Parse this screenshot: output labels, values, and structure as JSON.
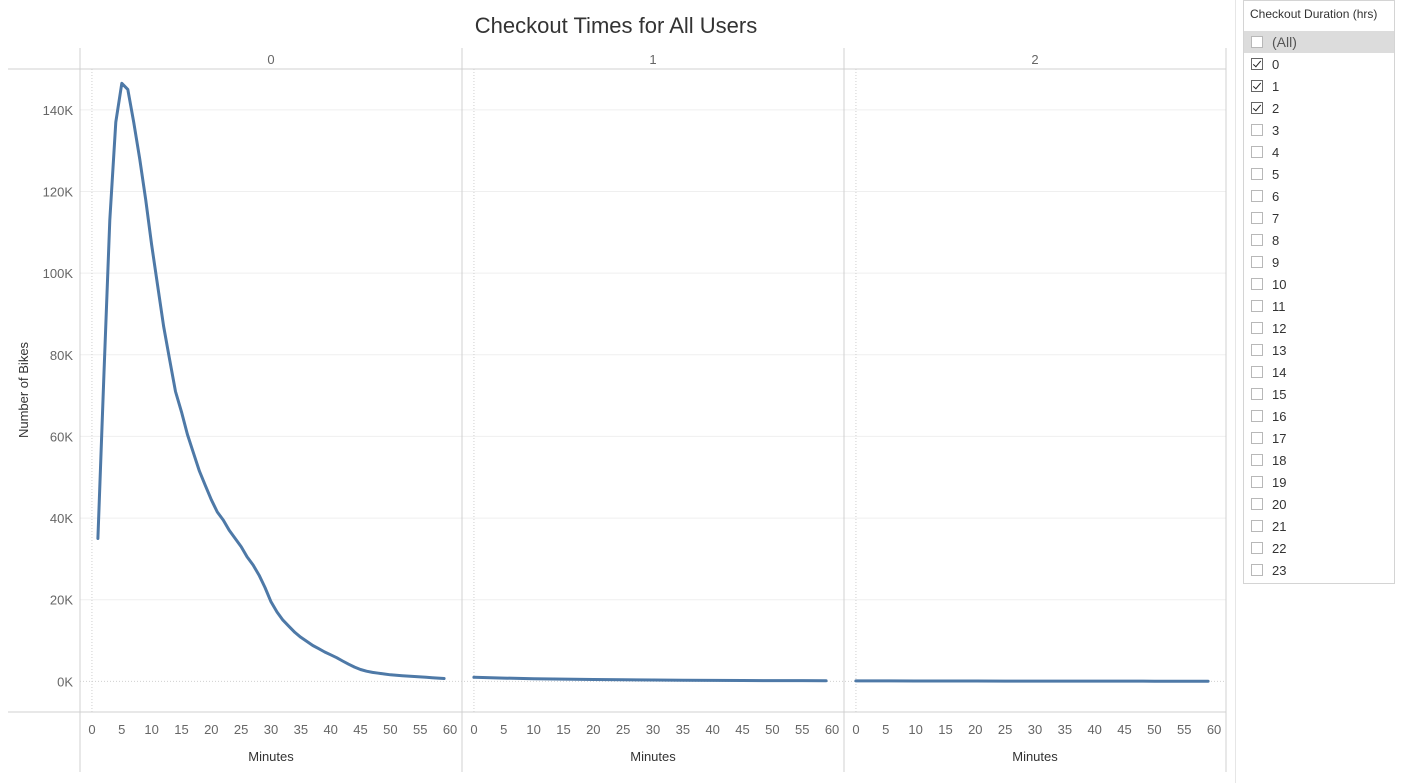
{
  "chart_data": {
    "type": "line",
    "title": "Checkout Times for All Users",
    "ylabel": "Number of Bikes",
    "xlabel": "Minutes",
    "ylim": [
      -7500,
      150000
    ],
    "yticks": [
      0,
      20000,
      40000,
      60000,
      80000,
      100000,
      120000,
      140000
    ],
    "ytick_labels": [
      "0K",
      "20K",
      "40K",
      "60K",
      "80K",
      "100K",
      "120K",
      "140K"
    ],
    "xlim": [
      -2,
      62
    ],
    "xticks": [
      0,
      5,
      10,
      15,
      20,
      25,
      30,
      35,
      40,
      45,
      50,
      55,
      60
    ],
    "xtick_labels": [
      "0",
      "5",
      "10",
      "15",
      "20",
      "25",
      "30",
      "35",
      "40",
      "45",
      "50",
      "55",
      "60"
    ],
    "grid": true,
    "color": "#4e79a7",
    "panels": [
      {
        "header": "0",
        "x": [
          1,
          2,
          3,
          4,
          5,
          6,
          7,
          8,
          9,
          10,
          11,
          12,
          13,
          14,
          15,
          16,
          17,
          18,
          19,
          20,
          21,
          22,
          23,
          24,
          25,
          26,
          27,
          28,
          29,
          30,
          31,
          32,
          33,
          34,
          35,
          36,
          37,
          38,
          39,
          40,
          41,
          42,
          43,
          44,
          45,
          46,
          47,
          48,
          49,
          50,
          51,
          52,
          53,
          54,
          55,
          56,
          57,
          58,
          59
        ],
        "y": [
          35000,
          75000,
          113000,
          137000,
          146500,
          145000,
          137000,
          128000,
          118000,
          107000,
          97000,
          87000,
          79000,
          71000,
          66000,
          60500,
          56000,
          51500,
          48000,
          44500,
          41500,
          39500,
          37000,
          35000,
          33000,
          30500,
          28500,
          26000,
          23000,
          19500,
          17000,
          15000,
          13500,
          12000,
          10800,
          9800,
          8800,
          8000,
          7200,
          6500,
          5800,
          5000,
          4200,
          3500,
          2900,
          2500,
          2200,
          2000,
          1800,
          1600,
          1500,
          1400,
          1300,
          1200,
          1100,
          1000,
          900,
          800,
          700
        ]
      },
      {
        "header": "1",
        "x": [
          0,
          5,
          10,
          15,
          20,
          25,
          30,
          35,
          40,
          45,
          50,
          55,
          59
        ],
        "y": [
          1000,
          800,
          650,
          550,
          450,
          400,
          350,
          300,
          250,
          220,
          200,
          180,
          160
        ]
      },
      {
        "header": "2",
        "x": [
          0,
          5,
          10,
          15,
          20,
          25,
          30,
          35,
          40,
          45,
          50,
          55,
          59
        ],
        "y": [
          120,
          110,
          100,
          90,
          85,
          80,
          75,
          70,
          65,
          60,
          55,
          50,
          45
        ]
      }
    ]
  },
  "filter": {
    "title": "Checkout Duration (hrs)",
    "items": [
      {
        "label": "(All)",
        "checked": false
      },
      {
        "label": "0",
        "checked": true
      },
      {
        "label": "1",
        "checked": true
      },
      {
        "label": "2",
        "checked": true
      },
      {
        "label": "3",
        "checked": false
      },
      {
        "label": "4",
        "checked": false
      },
      {
        "label": "5",
        "checked": false
      },
      {
        "label": "6",
        "checked": false
      },
      {
        "label": "7",
        "checked": false
      },
      {
        "label": "8",
        "checked": false
      },
      {
        "label": "9",
        "checked": false
      },
      {
        "label": "10",
        "checked": false
      },
      {
        "label": "11",
        "checked": false
      },
      {
        "label": "12",
        "checked": false
      },
      {
        "label": "13",
        "checked": false
      },
      {
        "label": "14",
        "checked": false
      },
      {
        "label": "15",
        "checked": false
      },
      {
        "label": "16",
        "checked": false
      },
      {
        "label": "17",
        "checked": false
      },
      {
        "label": "18",
        "checked": false
      },
      {
        "label": "19",
        "checked": false
      },
      {
        "label": "20",
        "checked": false
      },
      {
        "label": "21",
        "checked": false
      },
      {
        "label": "22",
        "checked": false
      },
      {
        "label": "23",
        "checked": false
      }
    ]
  }
}
